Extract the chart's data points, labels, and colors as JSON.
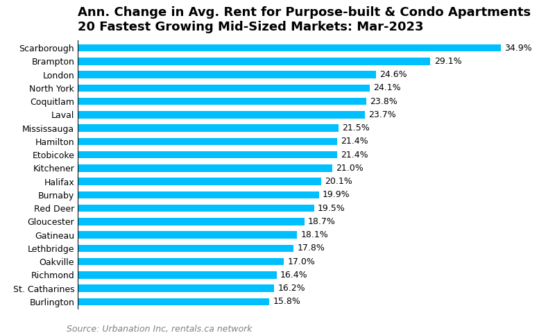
{
  "title_line1": "Ann. Change in Avg. Rent for Purpose-built & Condo Apartments",
  "title_line2": "20 Fastest Growing Mid-Sized Markets: Mar-2023",
  "source": "Source: Urbanation Inc, rentals.ca network",
  "bar_color": "#00BFFF",
  "background_color": "#FFFFFF",
  "categories": [
    "Scarborough",
    "Brampton",
    "London",
    "North York",
    "Coquitlam",
    "Laval",
    "Mississauga",
    "Hamilton",
    "Etobicoke",
    "Kitchener",
    "Halifax",
    "Burnaby",
    "Red Deer",
    "Gloucester",
    "Gatineau",
    "Lethbridge",
    "Oakville",
    "Richmond",
    "St. Catharines",
    "Burlington"
  ],
  "values": [
    34.9,
    29.1,
    24.6,
    24.1,
    23.8,
    23.7,
    21.5,
    21.4,
    21.4,
    21.0,
    20.1,
    19.9,
    19.5,
    18.7,
    18.1,
    17.8,
    17.0,
    16.4,
    16.2,
    15.8
  ],
  "xlim": [
    0,
    38
  ],
  "title_fontsize": 13,
  "tick_fontsize": 9,
  "source_fontsize": 9,
  "value_fontsize": 9
}
